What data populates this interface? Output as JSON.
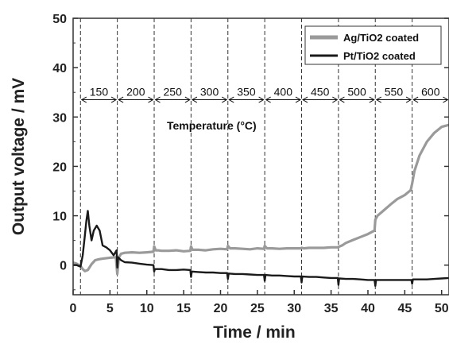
{
  "chart_data": {
    "type": "line",
    "title": "",
    "xlabel": "Time / min",
    "ylabel": "Output voltage / mV",
    "xlim": [
      0,
      51
    ],
    "ylim": [
      -6,
      50
    ],
    "xticks": [
      "0",
      "5",
      "10",
      "15",
      "20",
      "25",
      "30",
      "35",
      "40",
      "45",
      "50"
    ],
    "yticks": [
      "0",
      "10",
      "20",
      "30",
      "40",
      "50"
    ],
    "grid": false,
    "legend_position": "top-right",
    "annotation": "Temperature (°C)",
    "intervals": {
      "boundaries": [
        1,
        6,
        11,
        16,
        21,
        26,
        31,
        36,
        41,
        46,
        51
      ],
      "labels": [
        "150",
        "200",
        "250",
        "300",
        "350",
        "400",
        "450",
        "500",
        "550",
        "600"
      ],
      "arrow_y": 33.5
    },
    "series": [
      {
        "name": "Ag/TiO2 coated",
        "color": "#9a9a9a",
        "x": [
          0,
          0.5,
          1,
          1.3,
          1.6,
          2,
          2.5,
          3,
          3.5,
          4,
          5,
          5.8,
          6,
          6.2,
          6.5,
          7,
          8,
          9,
          10,
          10.9,
          11,
          11.2,
          11.5,
          12,
          13,
          14,
          15,
          15.9,
          16,
          16.2,
          16.5,
          17,
          18,
          19,
          20,
          20.9,
          21,
          21.3,
          22,
          23,
          24,
          25,
          25.9,
          26,
          26.3,
          27,
          28,
          29,
          30,
          30.9,
          31,
          31.3,
          32,
          33,
          34,
          35,
          35.9,
          36,
          36.5,
          37,
          38,
          39,
          40,
          40.9,
          41,
          41.3,
          42,
          43,
          44,
          45,
          45.8,
          46,
          46.3,
          47,
          48,
          49,
          50,
          51
        ],
        "y": [
          0.5,
          0.3,
          -0.2,
          -0.8,
          -1.2,
          -1,
          0.2,
          1,
          1.2,
          1.3,
          1.5,
          1.6,
          -1.8,
          1.5,
          2.3,
          2.5,
          2.6,
          2.5,
          2.6,
          2.7,
          3.8,
          3,
          3,
          2.9,
          2.9,
          3,
          2.8,
          2.9,
          3.8,
          3.1,
          3.1,
          3.1,
          3,
          3.2,
          3.3,
          3.2,
          3.9,
          3.4,
          3.4,
          3.3,
          3.2,
          3.4,
          3.3,
          3.9,
          3.4,
          3.4,
          3.3,
          3.4,
          3.4,
          3.4,
          3.5,
          3.4,
          3.5,
          3.5,
          3.5,
          3.6,
          3.6,
          3.7,
          4,
          4.5,
          5.1,
          5.7,
          6.3,
          7,
          9.2,
          10,
          10.9,
          12.2,
          13.4,
          14.2,
          15.2,
          16.5,
          19,
          22.2,
          25,
          26.8,
          28,
          28.4
        ]
      },
      {
        "name": "Pt/TiO2 coated",
        "color": "#1a1a1a",
        "x": [
          0,
          0.5,
          1,
          1.3,
          1.6,
          1.8,
          2,
          2.2,
          2.5,
          2.8,
          3.2,
          3.6,
          4,
          4.5,
          5,
          5.5,
          5.9,
          6,
          6.1,
          6.5,
          7,
          8,
          9,
          10,
          10.9,
          11,
          11.1,
          12,
          13,
          14,
          15,
          15.9,
          16,
          16.1,
          17,
          18,
          19,
          20,
          20.9,
          21,
          21.1,
          22,
          23,
          24,
          25,
          25.9,
          26,
          26.1,
          27,
          28,
          29,
          30,
          30.9,
          31,
          31.1,
          32,
          33,
          34,
          35,
          35.9,
          36,
          36.1,
          37,
          38,
          39,
          40,
          40.9,
          41,
          41.1,
          42,
          43,
          44,
          45,
          45.9,
          46,
          46.1,
          47,
          48,
          49,
          50,
          51
        ],
        "y": [
          0,
          0,
          -0.3,
          2,
          6,
          9,
          11,
          8,
          5,
          7,
          8,
          7,
          4,
          3.6,
          3,
          2,
          3,
          -0.5,
          1.6,
          1,
          0.6,
          0.5,
          0.3,
          0.1,
          0,
          -1.3,
          -0.8,
          -0.8,
          -1,
          -1,
          -0.9,
          -1,
          -2.4,
          -1.3,
          -1.4,
          -1.5,
          -1.5,
          -1.6,
          -1.6,
          -2.8,
          -1.7,
          -1.8,
          -1.8,
          -1.9,
          -2,
          -2,
          -3.2,
          -2,
          -2.1,
          -2.1,
          -2.2,
          -2.3,
          -2.3,
          -3.5,
          -2.3,
          -2.4,
          -2.4,
          -2.5,
          -2.6,
          -2.6,
          -4,
          -2.7,
          -2.8,
          -2.8,
          -2.9,
          -3,
          -3,
          -4.2,
          -3,
          -3,
          -3,
          -3,
          -3,
          -3,
          -3.8,
          -2.9,
          -2.9,
          -2.9,
          -2.8,
          -2.7,
          -2.6
        ]
      }
    ]
  }
}
